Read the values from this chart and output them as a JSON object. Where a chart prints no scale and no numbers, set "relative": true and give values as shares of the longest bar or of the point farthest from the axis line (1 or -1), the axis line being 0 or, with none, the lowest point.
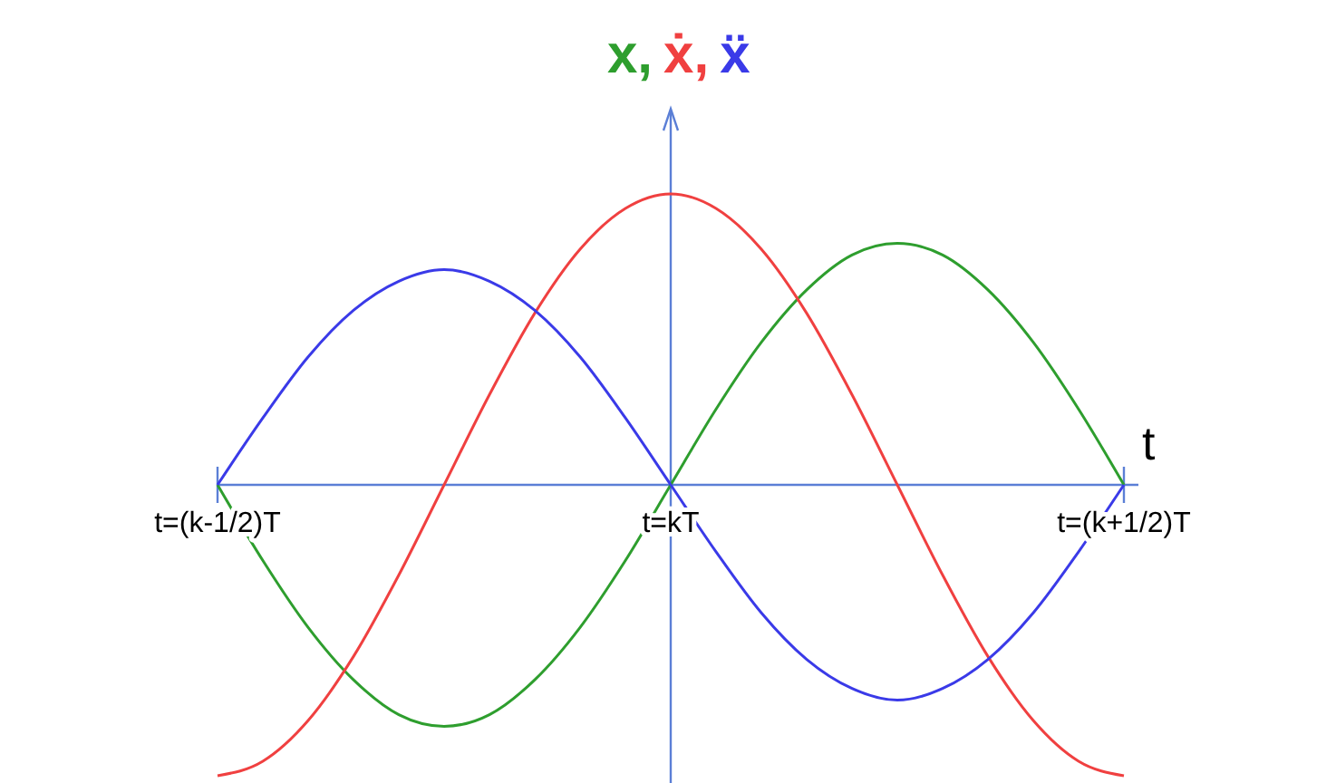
{
  "chart_data": {
    "type": "line",
    "relative": true,
    "xlabel": "t",
    "legend": "top",
    "marker": "none",
    "grid": false,
    "categories": [
      "t=(k-1/2)T",
      null,
      null,
      null,
      null,
      null,
      null,
      null,
      null,
      null,
      "t=kT",
      null,
      null,
      null,
      null,
      null,
      null,
      null,
      null,
      null,
      "t=(k+1/2)T"
    ],
    "series": [
      {
        "name": "x,",
        "color": "#2e9e2e",
        "values": [
          0,
          -0.26,
          -0.49,
          -0.67,
          -0.79,
          -0.83,
          -0.79,
          -0.67,
          -0.49,
          -0.26,
          0,
          0.26,
          0.49,
          0.67,
          0.79,
          0.83,
          0.79,
          0.67,
          0.49,
          0.26,
          0
        ]
      },
      {
        "name": "ẋ,",
        "color": "#f04040",
        "values": [
          -1,
          -0.95,
          -0.81,
          -0.59,
          -0.31,
          0,
          0.31,
          0.59,
          0.81,
          0.95,
          1,
          0.95,
          0.81,
          0.59,
          0.31,
          0,
          -0.31,
          -0.59,
          -0.81,
          -0.95,
          -1
        ]
      },
      {
        "name": "ẍ",
        "color": "#3a3ae8",
        "values": [
          0,
          0.23,
          0.44,
          0.6,
          0.7,
          0.74,
          0.7,
          0.6,
          0.44,
          0.23,
          0,
          -0.23,
          -0.44,
          -0.6,
          -0.7,
          -0.74,
          -0.7,
          -0.6,
          -0.44,
          -0.23,
          0
        ]
      }
    ]
  }
}
